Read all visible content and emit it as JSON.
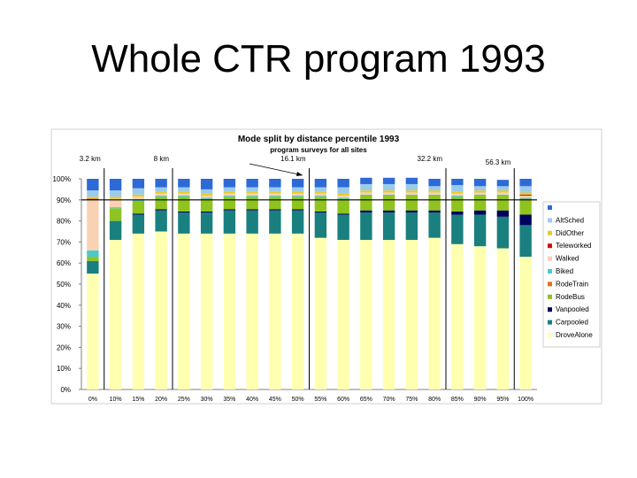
{
  "slide": {
    "title": "Whole CTR program 1993"
  },
  "chart_data": {
    "type": "bar",
    "stacked": true,
    "title": "Mode split by distance percentile 1993",
    "subtitle": "program surveys for all sites",
    "categories": [
      "0%",
      "10%",
      "15%",
      "20%",
      "25%",
      "30%",
      "35%",
      "40%",
      "45%",
      "50%",
      "55%",
      "60%",
      "65%",
      "70%",
      "75%",
      "80%",
      "85%",
      "90%",
      "95%",
      "100%"
    ],
    "ylim": [
      0,
      100
    ],
    "yticks": [
      "0%",
      "10%",
      "20%",
      "30%",
      "40%",
      "50%",
      "60%",
      "70%",
      "80%",
      "90%",
      "100%"
    ],
    "grid": false,
    "reference_line": 90,
    "legend_position": "right",
    "annotations": [
      {
        "label": "3.2 km",
        "after_category": 0
      },
      {
        "label": "8 km",
        "after_category": 3
      },
      {
        "label": "16.1 km",
        "after_category": 9
      },
      {
        "label": "32.2 km",
        "after_category": 15
      },
      {
        "label": "56.3 km",
        "after_category": 18
      }
    ],
    "series": [
      {
        "name": "DroveAlone",
        "color": "#FFFFB0",
        "values": [
          55,
          71,
          74,
          75,
          74,
          74,
          74,
          74,
          74,
          74,
          72,
          71,
          71,
          71,
          71,
          72,
          69,
          68,
          67,
          63
        ]
      },
      {
        "name": "Carpooled",
        "color": "#1A7F7F",
        "values": [
          6,
          9,
          9,
          10,
          10,
          10,
          11,
          11,
          11,
          11,
          12,
          12,
          13,
          13,
          13,
          12,
          14,
          15,
          15,
          15
        ]
      },
      {
        "name": "Vanpooled",
        "color": "#00005E",
        "values": [
          0,
          0,
          0.5,
          0.5,
          0.5,
          0.5,
          0.5,
          0.5,
          0.5,
          0.5,
          0.5,
          0.5,
          1,
          1,
          1,
          1,
          1.5,
          2,
          3,
          5
        ]
      },
      {
        "name": "RodeBus",
        "color": "#8FC31F",
        "values": [
          2,
          6,
          6,
          6,
          7,
          6,
          6,
          6,
          6,
          6,
          7,
          7,
          7,
          7,
          7,
          7,
          7,
          7,
          7,
          7
        ]
      },
      {
        "name": "RodeTrain",
        "color": "#E0701E",
        "values": [
          0,
          0,
          0,
          0,
          0,
          0,
          0,
          0,
          0,
          0,
          0,
          0,
          0,
          0,
          0,
          0,
          0,
          0,
          0,
          0.5
        ]
      },
      {
        "name": "Biked",
        "color": "#4CC9C9",
        "values": [
          3,
          0.5,
          0.5,
          0.5,
          0.5,
          0.5,
          0.5,
          0.5,
          0.5,
          0.5,
          0.5,
          0.5,
          0.5,
          0.5,
          0.5,
          0.5,
          0.5,
          0.5,
          0.5,
          0.5
        ]
      },
      {
        "name": "Walked",
        "color": "#F8D2B2",
        "values": [
          24,
          4,
          1.5,
          1,
          1,
          1,
          1,
          1,
          1,
          1,
          1,
          1,
          1,
          1,
          1,
          1,
          1,
          1,
          1,
          1
        ]
      },
      {
        "name": "Teleworked",
        "color": "#CC1111",
        "values": [
          0.5,
          0,
          0,
          0,
          0,
          0,
          0,
          0,
          0,
          0,
          0,
          0,
          0,
          0,
          0,
          0,
          0,
          0,
          0,
          0.5
        ]
      },
      {
        "name": "DidOther",
        "color": "#E6CC2E",
        "values": [
          1,
          1,
          1,
          1,
          1,
          1,
          1,
          1,
          1,
          1,
          1,
          1,
          1,
          1,
          1,
          1,
          1,
          1,
          1,
          1
        ]
      },
      {
        "name": "AltSched",
        "color": "#9BCBEB",
        "values": [
          3,
          3,
          3,
          2,
          2,
          2,
          2,
          2,
          2,
          2,
          2,
          3,
          3,
          3,
          3,
          2,
          3,
          2,
          2,
          3
        ]
      },
      {
        "name": "",
        "color": "#2E6AD6",
        "values": [
          5.5,
          5.5,
          4.5,
          4,
          4,
          5,
          4,
          4,
          4,
          4,
          4,
          4,
          3,
          3,
          3,
          3.5,
          3,
          3.5,
          3,
          3.5
        ]
      }
    ]
  }
}
